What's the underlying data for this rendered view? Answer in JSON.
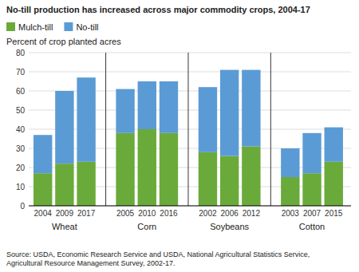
{
  "chart_data": {
    "type": "bar",
    "stacked": true,
    "title": "No-till production has increased across major commodity crops, 2004-17",
    "y_label": "Percent of crop planted acres",
    "source": "Source: USDA, Economic Research Service and USDA, National Agricultural Statistics Service,\nAgricultural Resource Management Survey, 2002-17.",
    "groups": [
      {
        "label": "Wheat",
        "categories": [
          "2004",
          "2009",
          "2017"
        ]
      },
      {
        "label": "Corn",
        "categories": [
          "2005",
          "2010",
          "2016"
        ]
      },
      {
        "label": "Soybeans",
        "categories": [
          "2002",
          "2006",
          "2012"
        ]
      },
      {
        "label": "Cotton",
        "categories": [
          "2003",
          "2007",
          "2015"
        ]
      }
    ],
    "series": [
      {
        "name": "Mulch-till",
        "color": "#6aaa3a",
        "values": [
          17,
          22,
          23,
          38,
          40,
          38,
          28,
          26,
          31,
          15,
          17,
          23
        ]
      },
      {
        "name": "No-till",
        "color": "#5b9bd5",
        "values": [
          20,
          38,
          44,
          23,
          25,
          27,
          34,
          45,
          40,
          15,
          21,
          18
        ]
      }
    ],
    "ylim": [
      0,
      80
    ],
    "yticks": [
      0,
      10,
      20,
      30,
      40,
      50,
      60,
      70,
      80
    ],
    "grid": true,
    "legend": "upper left"
  }
}
